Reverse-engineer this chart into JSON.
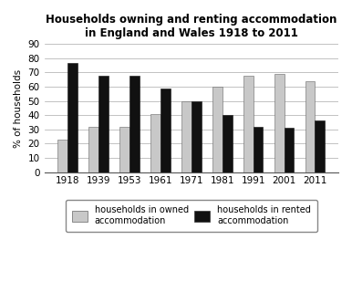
{
  "title_line1": "Households owning and renting accommodation",
  "title_line2": "in England and Wales 1918 to 2011",
  "years": [
    "1918",
    "1939",
    "1953",
    "1961",
    "1971",
    "1981",
    "1991",
    "2001",
    "2011"
  ],
  "owned": [
    23,
    32,
    32,
    41,
    50,
    60,
    68,
    69,
    64
  ],
  "rented": [
    77,
    68,
    68,
    59,
    50,
    40,
    32,
    31,
    36
  ],
  "owned_color": "#c8c8c8",
  "rented_color": "#111111",
  "ylabel": "% of households",
  "ylim": [
    0,
    90
  ],
  "yticks": [
    0,
    10,
    20,
    30,
    40,
    50,
    60,
    70,
    80,
    90
  ],
  "legend_owned": "households in owned\naccommodation",
  "legend_rented": "households in rented\naccommodation",
  "bar_width": 0.32,
  "title_fontsize": 8.5,
  "axis_fontsize": 7.5,
  "legend_fontsize": 7.0
}
